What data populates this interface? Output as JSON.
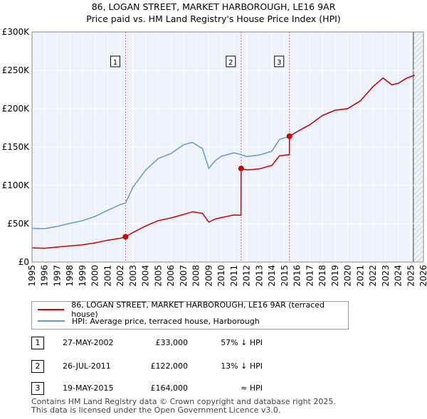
{
  "header": {
    "title_line1": "86, LOGAN STREET, MARKET HARBOROUGH, LE16 9AR",
    "title_line2": "Price paid vs. HM Land Registry's House Price Index (HPI)"
  },
  "colors": {
    "price_paid": "#cc0000",
    "hpi": "#6699cc",
    "future_hatch": "#bbbbbb",
    "grid": "#cccccc",
    "plot_bg": "#eef2fa"
  },
  "chart_data": {
    "type": "line",
    "title": "Price paid vs. HM Land Registry's House Price Index (HPI)",
    "xlabel": "",
    "ylabel": "",
    "xlim": [
      1995,
      2026
    ],
    "ylim": [
      0,
      300000
    ],
    "x_ticks": [
      "1995",
      "1996",
      "1997",
      "1998",
      "1999",
      "2000",
      "2001",
      "2002",
      "2003",
      "2004",
      "2005",
      "2006",
      "2007",
      "2008",
      "2009",
      "2010",
      "2011",
      "2012",
      "2013",
      "2014",
      "2015",
      "2016",
      "2017",
      "2018",
      "2019",
      "2020",
      "2021",
      "2022",
      "2023",
      "2024",
      "2025",
      "2026"
    ],
    "y_ticks": [
      {
        "value": 0,
        "label": "£0"
      },
      {
        "value": 50000,
        "label": "£50K"
      },
      {
        "value": 100000,
        "label": "£100K"
      },
      {
        "value": 150000,
        "label": "£150K"
      },
      {
        "value": 200000,
        "label": "£200K"
      },
      {
        "value": 250000,
        "label": "£250K"
      },
      {
        "value": 300000,
        "label": "£300K"
      }
    ],
    "grid": true,
    "future_start": 2025.2,
    "series": [
      {
        "name": "86, LOGAN STREET, MARKET HARBOROUGH, LE16 9AR (terraced house)",
        "color": "#cc0000",
        "points": [
          [
            1995.0,
            18500
          ],
          [
            1996.0,
            18000
          ],
          [
            1997.0,
            19500
          ],
          [
            1998.0,
            21000
          ],
          [
            1999.0,
            22500
          ],
          [
            2000.0,
            25000
          ],
          [
            2001.0,
            28500
          ],
          [
            2002.0,
            31000
          ],
          [
            2002.41,
            33000
          ],
          [
            2003.0,
            38500
          ],
          [
            2004.0,
            47000
          ],
          [
            2005.0,
            54000
          ],
          [
            2006.0,
            57500
          ],
          [
            2007.0,
            62000
          ],
          [
            2007.7,
            65500
          ],
          [
            2008.5,
            63500
          ],
          [
            2009.0,
            52000
          ],
          [
            2009.5,
            56000
          ],
          [
            2010.0,
            58000
          ],
          [
            2011.0,
            61500
          ],
          [
            2011.55,
            61000
          ],
          [
            2011.56,
            122000
          ],
          [
            2012.0,
            120000
          ],
          [
            2013.0,
            121500
          ],
          [
            2014.0,
            126000
          ],
          [
            2014.6,
            138500
          ],
          [
            2015.38,
            140000
          ],
          [
            2015.39,
            164000
          ],
          [
            2016.0,
            170000
          ],
          [
            2017.0,
            179000
          ],
          [
            2018.0,
            191000
          ],
          [
            2019.0,
            198000
          ],
          [
            2020.0,
            200000
          ],
          [
            2021.0,
            210000
          ],
          [
            2022.0,
            228500
          ],
          [
            2022.8,
            240000
          ],
          [
            2023.5,
            231000
          ],
          [
            2024.0,
            233000
          ],
          [
            2024.7,
            240000
          ],
          [
            2025.3,
            243500
          ]
        ]
      },
      {
        "name": "HPI: Average price, terraced house, Harborough",
        "color": "#6699cc",
        "points": [
          [
            1995.0,
            44000
          ],
          [
            1996.0,
            43500
          ],
          [
            1997.0,
            46500
          ],
          [
            1998.0,
            50500
          ],
          [
            1999.0,
            54000
          ],
          [
            2000.0,
            59500
          ],
          [
            2001.0,
            67500
          ],
          [
            2002.0,
            75000
          ],
          [
            2002.41,
            77000
          ],
          [
            2003.0,
            98000
          ],
          [
            2004.0,
            120000
          ],
          [
            2005.0,
            135000
          ],
          [
            2006.0,
            141500
          ],
          [
            2007.0,
            153000
          ],
          [
            2007.7,
            156000
          ],
          [
            2008.5,
            148000
          ],
          [
            2009.0,
            122000
          ],
          [
            2009.5,
            132000
          ],
          [
            2010.0,
            138000
          ],
          [
            2011.0,
            142500
          ],
          [
            2011.56,
            140000
          ],
          [
            2012.0,
            137500
          ],
          [
            2013.0,
            139500
          ],
          [
            2014.0,
            144500
          ],
          [
            2014.6,
            160000
          ],
          [
            2015.39,
            164000
          ],
          [
            2016.0,
            170000
          ],
          [
            2017.0,
            179000
          ],
          [
            2018.0,
            191000
          ],
          [
            2019.0,
            198000
          ],
          [
            2020.0,
            200000
          ],
          [
            2021.0,
            210000
          ],
          [
            2022.0,
            228500
          ],
          [
            2022.8,
            240000
          ],
          [
            2023.5,
            231000
          ],
          [
            2024.0,
            233000
          ],
          [
            2024.7,
            240000
          ],
          [
            2025.3,
            243500
          ]
        ]
      }
    ],
    "transactions": [
      {
        "label": "1",
        "x": 2002.41,
        "price": 33000
      },
      {
        "label": "2",
        "x": 2011.56,
        "price": 122000
      },
      {
        "label": "3",
        "x": 2015.39,
        "price": 164000
      }
    ]
  },
  "legend": {
    "items": [
      {
        "label": "86, LOGAN STREET, MARKET HARBOROUGH, LE16 9AR (terraced house)"
      },
      {
        "label": "HPI: Average price, terraced house, Harborough"
      }
    ]
  },
  "table": {
    "rows": [
      {
        "num": "1",
        "date": "27-MAY-2002",
        "price": "£33,000",
        "hpi": "57% ↓ HPI"
      },
      {
        "num": "2",
        "date": "26-JUL-2011",
        "price": "£122,000",
        "hpi": "13% ↓ HPI"
      },
      {
        "num": "3",
        "date": "19-MAY-2015",
        "price": "£164,000",
        "hpi": "≈ HPI"
      }
    ]
  },
  "footer": {
    "line1": "Contains HM Land Registry data © Crown copyright and database right 2025.",
    "line2": "This data is licensed under the Open Government Licence v3.0."
  }
}
